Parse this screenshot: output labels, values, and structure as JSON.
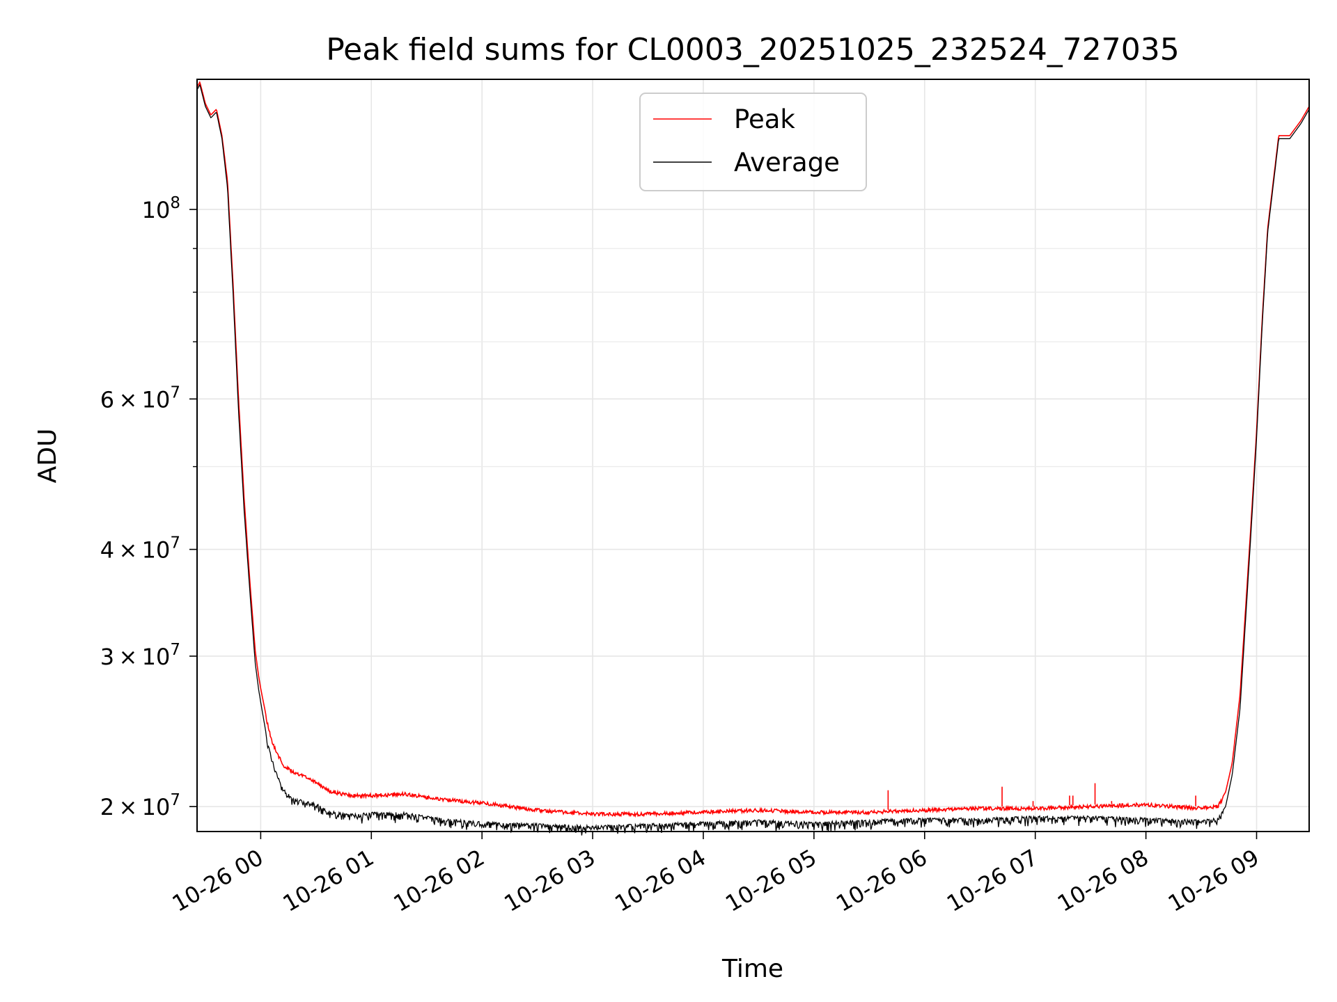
{
  "chart_data": {
    "type": "line",
    "title": "Peak field sums for CL0003_20251025_232524_727035",
    "xlabel": "Time",
    "ylabel": "ADU",
    "yscale": "log",
    "ylim": [
      18700000,
      142000000
    ],
    "xlim_hours_from_2025_10_26_00_00": [
      -0.575,
      9.475
    ],
    "grid": true,
    "legend_position": "upper center",
    "x_ticks": [
      {
        "hour": 0,
        "label": "10-26 00"
      },
      {
        "hour": 1,
        "label": "10-26 01"
      },
      {
        "hour": 2,
        "label": "10-26 02"
      },
      {
        "hour": 3,
        "label": "10-26 03"
      },
      {
        "hour": 4,
        "label": "10-26 04"
      },
      {
        "hour": 5,
        "label": "10-26 05"
      },
      {
        "hour": 6,
        "label": "10-26 06"
      },
      {
        "hour": 7,
        "label": "10-26 07"
      },
      {
        "hour": 8,
        "label": "10-26 08"
      },
      {
        "hour": 9,
        "label": "10-26 09"
      }
    ],
    "y_ticks": [
      {
        "value": 20000000,
        "mantissa": "2",
        "times": "×",
        "base": "10",
        "exp": "7"
      },
      {
        "value": 30000000,
        "mantissa": "3",
        "times": "×",
        "base": "10",
        "exp": "7"
      },
      {
        "value": 40000000,
        "mantissa": "4",
        "times": "×",
        "base": "10",
        "exp": "7"
      },
      {
        "value": 60000000,
        "mantissa": "6",
        "times": "×",
        "base": "10",
        "exp": "7"
      },
      {
        "value": 100000000,
        "mantissa": "",
        "times": "",
        "base": "10",
        "exp": "8"
      }
    ],
    "y_minor_ticks": [
      50000000,
      70000000,
      80000000,
      90000000
    ],
    "series": [
      {
        "name": "Peak",
        "color": "#ff0000",
        "x_hours": [
          -0.575,
          -0.55,
          -0.5,
          -0.45,
          -0.4,
          -0.35,
          -0.3,
          -0.25,
          -0.2,
          -0.15,
          -0.1,
          -0.05,
          -0.02,
          0.0,
          0.05,
          0.1,
          0.15,
          0.2,
          0.3,
          0.4,
          0.5,
          0.6,
          0.8,
          1.0,
          1.3,
          1.6,
          2.0,
          2.5,
          3.0,
          3.5,
          4.0,
          4.5,
          5.0,
          5.5,
          6.0,
          6.5,
          7.0,
          7.5,
          8.0,
          8.5,
          8.65,
          8.72,
          8.78,
          8.85,
          8.9,
          8.95,
          9.0,
          9.05,
          9.1,
          9.2,
          9.3,
          9.4,
          9.475
        ],
        "values": [
          139000000,
          141000000,
          133000000,
          129000000,
          131000000,
          122000000,
          108000000,
          82000000,
          60000000,
          46000000,
          37000000,
          30500000,
          28500000,
          27500000,
          25500000,
          24000000,
          23200000,
          22500000,
          22000000,
          21800000,
          21500000,
          21000000,
          20700000,
          20700000,
          20800000,
          20500000,
          20300000,
          19900000,
          19700000,
          19700000,
          19800000,
          19900000,
          19800000,
          19800000,
          19900000,
          20000000,
          20000000,
          20100000,
          20200000,
          20000000,
          20100000,
          20800000,
          22500000,
          27000000,
          34000000,
          43000000,
          55000000,
          74000000,
          95000000,
          122000000,
          122000000,
          127000000,
          132000000
        ]
      },
      {
        "name": "Average",
        "color": "#000000",
        "x_hours": [
          -0.575,
          -0.55,
          -0.5,
          -0.45,
          -0.4,
          -0.35,
          -0.3,
          -0.25,
          -0.2,
          -0.15,
          -0.1,
          -0.05,
          -0.02,
          0.0,
          0.05,
          0.1,
          0.15,
          0.2,
          0.3,
          0.4,
          0.5,
          0.6,
          0.8,
          1.0,
          1.3,
          1.6,
          2.0,
          2.5,
          3.0,
          3.5,
          4.0,
          4.5,
          5.0,
          5.5,
          6.0,
          6.5,
          7.0,
          7.5,
          8.0,
          8.5,
          8.65,
          8.72,
          8.78,
          8.85,
          8.9,
          8.95,
          9.0,
          9.05,
          9.1,
          9.2,
          9.3,
          9.4,
          9.475
        ],
        "values": [
          138000000,
          140000000,
          132000000,
          128000000,
          130000000,
          121000000,
          106000000,
          80000000,
          58000000,
          44500000,
          36000000,
          29500000,
          27500000,
          26500000,
          24300000,
          22800000,
          21800000,
          21000000,
          20500000,
          20300000,
          20200000,
          19800000,
          19600000,
          19700000,
          19700000,
          19400000,
          19200000,
          19100000,
          19000000,
          19100000,
          19200000,
          19300000,
          19200000,
          19300000,
          19400000,
          19400000,
          19500000,
          19500000,
          19400000,
          19300000,
          19400000,
          20000000,
          21800000,
          26000000,
          33000000,
          42000000,
          54000000,
          73000000,
          94000000,
          121000000,
          121000000,
          126000000,
          131000000
        ]
      }
    ],
    "spikes": [
      {
        "hour": 5.67,
        "value": 20900000
      },
      {
        "hour": 6.7,
        "value": 21100000
      },
      {
        "hour": 6.98,
        "value": 20300000
      },
      {
        "hour": 7.31,
        "value": 20600000
      },
      {
        "hour": 7.34,
        "value": 20600000
      },
      {
        "hour": 7.54,
        "value": 21300000
      },
      {
        "hour": 7.69,
        "value": 20300000
      },
      {
        "hour": 8.45,
        "value": 20600000
      }
    ]
  }
}
